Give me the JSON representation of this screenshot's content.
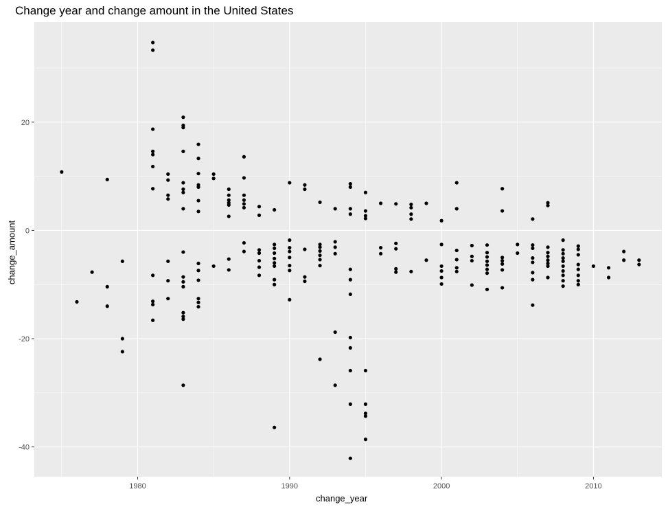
{
  "chart_data": {
    "type": "scatter",
    "title": "Change year and change amount in the United States",
    "xlabel": "change_year",
    "ylabel": "change_amount",
    "xlim": [
      1973.2,
      2014.5
    ],
    "ylim": [
      -45.5,
      38.5
    ],
    "x_ticks": [
      1980,
      1990,
      2000,
      2010
    ],
    "y_ticks": [
      -40,
      -20,
      0,
      20
    ],
    "grid": true,
    "background": "#ebebeb",
    "grid_color": "#ffffff",
    "point_color": "#000000",
    "points": [
      [
        1975,
        10.8
      ],
      [
        1976,
        -13.2
      ],
      [
        1977,
        -7.7
      ],
      [
        1978,
        9.4
      ],
      [
        1978,
        -10.4
      ],
      [
        1978,
        -14.0
      ],
      [
        1979,
        -5.7
      ],
      [
        1979,
        -20.0
      ],
      [
        1979,
        -22.4
      ],
      [
        1981,
        34.7
      ],
      [
        1981,
        33.3
      ],
      [
        1981,
        18.7
      ],
      [
        1981,
        14.6
      ],
      [
        1981,
        14.0
      ],
      [
        1981,
        11.8
      ],
      [
        1981,
        7.7
      ],
      [
        1981,
        -8.3
      ],
      [
        1981,
        -13.1
      ],
      [
        1981,
        -13.7
      ],
      [
        1981,
        -16.6
      ],
      [
        1982,
        10.4
      ],
      [
        1982,
        9.3
      ],
      [
        1982,
        6.5
      ],
      [
        1982,
        5.8
      ],
      [
        1982,
        -5.7
      ],
      [
        1982,
        -9.3
      ],
      [
        1982,
        -12.6
      ],
      [
        1983,
        20.9
      ],
      [
        1983,
        19.4
      ],
      [
        1983,
        19.0
      ],
      [
        1983,
        14.6
      ],
      [
        1983,
        8.8
      ],
      [
        1983,
        7.6
      ],
      [
        1983,
        7.0
      ],
      [
        1983,
        4.0
      ],
      [
        1983,
        -4.0
      ],
      [
        1983,
        -8.6
      ],
      [
        1983,
        -9.5
      ],
      [
        1983,
        -10.4
      ],
      [
        1983,
        -15.2
      ],
      [
        1983,
        -15.9
      ],
      [
        1983,
        -16.4
      ],
      [
        1983,
        -28.6
      ],
      [
        1984,
        15.9
      ],
      [
        1984,
        13.3
      ],
      [
        1984,
        10.5
      ],
      [
        1984,
        8.4
      ],
      [
        1984,
        8.0
      ],
      [
        1984,
        5.5
      ],
      [
        1984,
        3.5
      ],
      [
        1984,
        -6.1
      ],
      [
        1984,
        -7.4
      ],
      [
        1984,
        -9.2
      ],
      [
        1984,
        -12.6
      ],
      [
        1984,
        -13.3
      ],
      [
        1984,
        -14.1
      ],
      [
        1985,
        10.4
      ],
      [
        1985,
        9.6
      ],
      [
        1985,
        -6.6
      ],
      [
        1986,
        7.6
      ],
      [
        1986,
        6.5
      ],
      [
        1986,
        5.6
      ],
      [
        1986,
        5.1
      ],
      [
        1986,
        4.7
      ],
      [
        1986,
        2.6
      ],
      [
        1986,
        -5.3
      ],
      [
        1986,
        -7.3
      ],
      [
        1987,
        13.6
      ],
      [
        1987,
        9.7
      ],
      [
        1987,
        6.5
      ],
      [
        1987,
        5.6
      ],
      [
        1987,
        4.9
      ],
      [
        1987,
        4.2
      ],
      [
        1987,
        -2.3
      ],
      [
        1987,
        -3.9
      ],
      [
        1988,
        4.4
      ],
      [
        1988,
        2.8
      ],
      [
        1988,
        -3.6
      ],
      [
        1988,
        -4.2
      ],
      [
        1988,
        -5.6
      ],
      [
        1988,
        -6.8
      ],
      [
        1988,
        -8.3
      ],
      [
        1989,
        3.8
      ],
      [
        1989,
        -2.6
      ],
      [
        1989,
        -3.3
      ],
      [
        1989,
        -4.2
      ],
      [
        1989,
        -5.2
      ],
      [
        1989,
        -6.0
      ],
      [
        1989,
        -6.6
      ],
      [
        1989,
        -9.1
      ],
      [
        1989,
        -10.0
      ],
      [
        1989,
        -36.4
      ],
      [
        1990,
        8.8
      ],
      [
        1990,
        -1.8
      ],
      [
        1990,
        -3.2
      ],
      [
        1990,
        -3.9
      ],
      [
        1990,
        -5.0
      ],
      [
        1990,
        -6.5
      ],
      [
        1990,
        -7.4
      ],
      [
        1990,
        -12.8
      ],
      [
        1991,
        8.4
      ],
      [
        1991,
        7.6
      ],
      [
        1991,
        -3.5
      ],
      [
        1991,
        -8.6
      ],
      [
        1991,
        -9.4
      ],
      [
        1992,
        5.2
      ],
      [
        1992,
        -2.6
      ],
      [
        1992,
        -3.1
      ],
      [
        1992,
        -3.8
      ],
      [
        1992,
        -4.6
      ],
      [
        1992,
        -5.4
      ],
      [
        1992,
        -6.5
      ],
      [
        1992,
        -23.8
      ],
      [
        1993,
        4.0
      ],
      [
        1993,
        -2.1
      ],
      [
        1993,
        -3.1
      ],
      [
        1993,
        -4.3
      ],
      [
        1993,
        -18.8
      ],
      [
        1993,
        -28.6
      ],
      [
        1994,
        8.6
      ],
      [
        1994,
        8.0
      ],
      [
        1994,
        4.0
      ],
      [
        1994,
        3.0
      ],
      [
        1994,
        -7.2
      ],
      [
        1994,
        -9.1
      ],
      [
        1994,
        -11.8
      ],
      [
        1994,
        -19.8
      ],
      [
        1994,
        -21.7
      ],
      [
        1994,
        -25.9
      ],
      [
        1994,
        -32.1
      ],
      [
        1994,
        -42.1
      ],
      [
        1995,
        7.0
      ],
      [
        1995,
        3.6
      ],
      [
        1995,
        2.7
      ],
      [
        1995,
        2.2
      ],
      [
        1995,
        -25.9
      ],
      [
        1995,
        -32.1
      ],
      [
        1995,
        -33.8
      ],
      [
        1995,
        -34.3
      ],
      [
        1995,
        -38.6
      ],
      [
        1996,
        5.0
      ],
      [
        1996,
        -3.2
      ],
      [
        1996,
        -4.3
      ],
      [
        1997,
        4.9
      ],
      [
        1997,
        -2.4
      ],
      [
        1997,
        -3.4
      ],
      [
        1997,
        -7.1
      ],
      [
        1997,
        -7.7
      ],
      [
        1998,
        4.8
      ],
      [
        1998,
        4.2
      ],
      [
        1998,
        3.0
      ],
      [
        1998,
        2.1
      ],
      [
        1998,
        -7.6
      ],
      [
        1999,
        5.0
      ],
      [
        1999,
        -5.5
      ],
      [
        2000,
        1.8
      ],
      [
        2000,
        -2.6
      ],
      [
        2000,
        -6.6
      ],
      [
        2000,
        -7.5
      ],
      [
        2000,
        -8.7
      ],
      [
        2000,
        -9.9
      ],
      [
        2001,
        8.8
      ],
      [
        2001,
        4.0
      ],
      [
        2001,
        -3.7
      ],
      [
        2001,
        -5.4
      ],
      [
        2001,
        -6.9
      ],
      [
        2001,
        -7.6
      ],
      [
        2002,
        -2.8
      ],
      [
        2002,
        -4.8
      ],
      [
        2002,
        -5.6
      ],
      [
        2002,
        -10.1
      ],
      [
        2003,
        -2.7
      ],
      [
        2003,
        -4.1
      ],
      [
        2003,
        -4.9
      ],
      [
        2003,
        -5.7
      ],
      [
        2003,
        -6.4
      ],
      [
        2003,
        -7.2
      ],
      [
        2003,
        -7.9
      ],
      [
        2003,
        -10.9
      ],
      [
        2004,
        7.7
      ],
      [
        2004,
        3.6
      ],
      [
        2004,
        -5.0
      ],
      [
        2004,
        -5.6
      ],
      [
        2004,
        -6.2
      ],
      [
        2004,
        -7.3
      ],
      [
        2004,
        -10.6
      ],
      [
        2005,
        -2.6
      ],
      [
        2005,
        -4.2
      ],
      [
        2006,
        2.1
      ],
      [
        2006,
        -2.7
      ],
      [
        2006,
        -3.3
      ],
      [
        2006,
        -5.1
      ],
      [
        2006,
        -5.9
      ],
      [
        2006,
        -7.8
      ],
      [
        2006,
        -9.1
      ],
      [
        2006,
        -13.8
      ],
      [
        2007,
        5.1
      ],
      [
        2007,
        4.6
      ],
      [
        2007,
        -3.1
      ],
      [
        2007,
        -4.1
      ],
      [
        2007,
        -4.8
      ],
      [
        2007,
        -5.5
      ],
      [
        2007,
        -6.1
      ],
      [
        2007,
        -6.6
      ],
      [
        2007,
        -8.7
      ],
      [
        2008,
        -1.8
      ],
      [
        2008,
        -3.6
      ],
      [
        2008,
        -4.3
      ],
      [
        2008,
        -5.1
      ],
      [
        2008,
        -5.7
      ],
      [
        2008,
        -6.6
      ],
      [
        2008,
        -7.5
      ],
      [
        2008,
        -8.3
      ],
      [
        2008,
        -9.3
      ],
      [
        2008,
        -10.3
      ],
      [
        2009,
        -2.9
      ],
      [
        2009,
        -3.5
      ],
      [
        2009,
        -4.5
      ],
      [
        2009,
        -6.3
      ],
      [
        2009,
        -7.2
      ],
      [
        2009,
        -8.3
      ],
      [
        2009,
        -9.3
      ],
      [
        2009,
        -10.0
      ],
      [
        2010,
        -6.6
      ],
      [
        2011,
        -6.9
      ],
      [
        2011,
        -8.7
      ],
      [
        2012,
        -3.9
      ],
      [
        2012,
        -5.5
      ],
      [
        2013,
        -5.5
      ],
      [
        2013,
        -6.3
      ]
    ]
  }
}
